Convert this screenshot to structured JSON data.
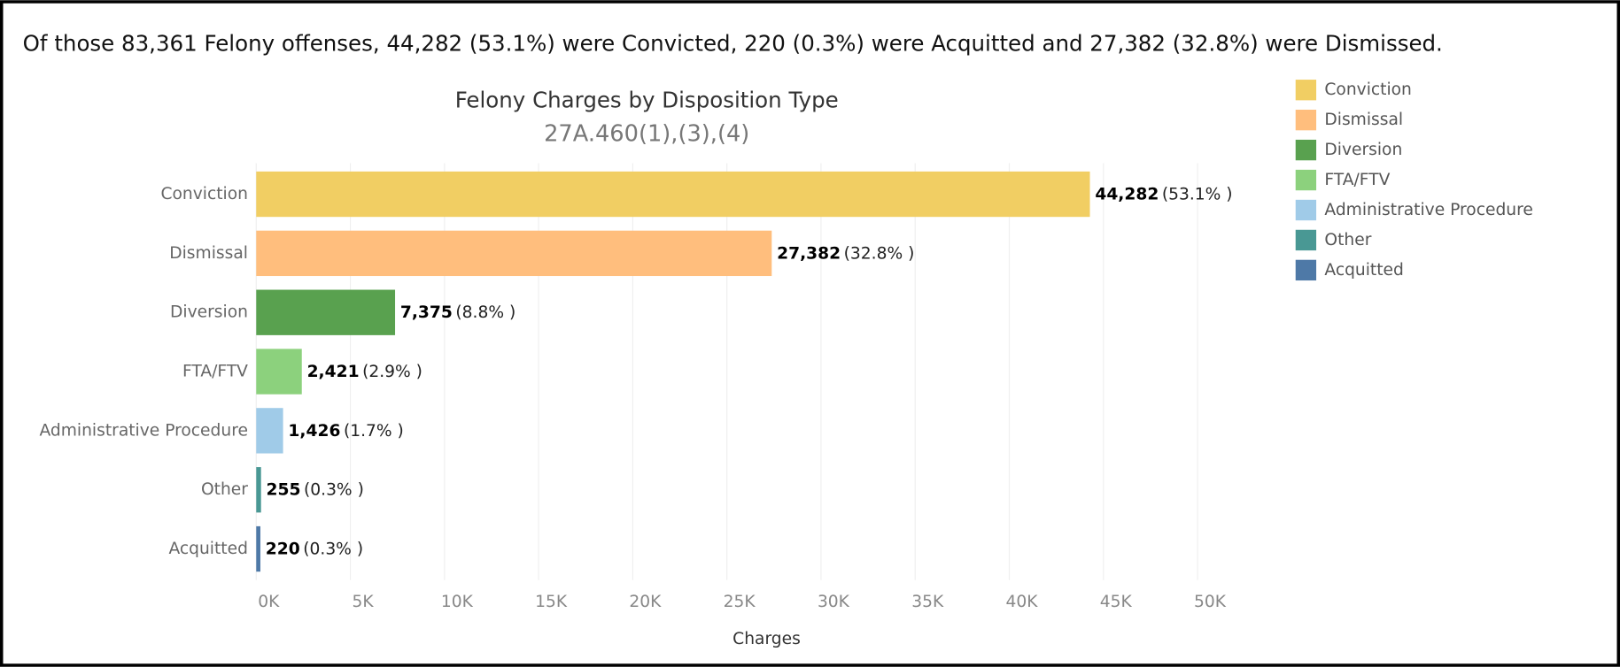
{
  "headline": "Of those 83,361 Felony offenses, 44,282 (53.1%) were Convicted, 220 (0.3%) were Acquitted and 27,382 (32.8%) were Dismissed.",
  "chart_data": {
    "type": "bar",
    "orientation": "horizontal",
    "title": "Felony Charges by Disposition Type",
    "subtitle": "27A.460(1),(3),(4)",
    "x_label": "Charges",
    "categories": [
      "Conviction",
      "Dismissal",
      "Diversion",
      "FTA/FTV",
      "Administrative Procedure",
      "Other",
      "Acquitted"
    ],
    "values": [
      44282,
      27382,
      7375,
      2421,
      1426,
      255,
      220
    ],
    "value_labels": [
      "44,282",
      "27,382",
      "7,375",
      "2,421",
      "1,426",
      "255",
      "220"
    ],
    "percent_labels": [
      "(53.1% )",
      "(32.8% )",
      "(8.8% )",
      "(2.9% )",
      "(1.7% )",
      "(0.3% )",
      "(0.3% )"
    ],
    "colors": [
      "#f1ce63",
      "#ffbe7d",
      "#59a14f",
      "#8cd17d",
      "#a0cbe8",
      "#499894",
      "#4e79a7"
    ],
    "xlim": [
      0,
      54000
    ],
    "xticks": [
      {
        "value": 0,
        "label": "0K"
      },
      {
        "value": 5000,
        "label": "5K"
      },
      {
        "value": 10000,
        "label": "10K"
      },
      {
        "value": 15000,
        "label": "15K"
      },
      {
        "value": 20000,
        "label": "20K"
      },
      {
        "value": 25000,
        "label": "25K"
      },
      {
        "value": 30000,
        "label": "30K"
      },
      {
        "value": 35000,
        "label": "35K"
      },
      {
        "value": 40000,
        "label": "40K"
      },
      {
        "value": 45000,
        "label": "45K"
      },
      {
        "value": 50000,
        "label": "50K"
      }
    ],
    "grid": true,
    "legend": "top-right"
  }
}
